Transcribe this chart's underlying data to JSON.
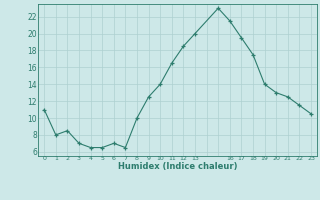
{
  "x": [
    0,
    1,
    2,
    3,
    4,
    5,
    6,
    7,
    8,
    9,
    10,
    11,
    12,
    13,
    15,
    16,
    17,
    18,
    19,
    20,
    21,
    22,
    23
  ],
  "y": [
    11.0,
    8.0,
    8.5,
    7.0,
    6.5,
    6.5,
    7.0,
    6.5,
    10.0,
    12.5,
    14.0,
    16.5,
    18.5,
    20.0,
    23.0,
    21.5,
    19.5,
    17.5,
    14.0,
    13.0,
    12.5,
    11.5,
    10.5
  ],
  "line_color": "#2e7d6e",
  "marker": "+",
  "bg_color": "#cde8e8",
  "grid_color": "#aed0d0",
  "xlabel": "Humidex (Indice chaleur)",
  "xlim": [
    -0.5,
    23.5
  ],
  "ylim": [
    5.5,
    23.5
  ],
  "yticks": [
    6,
    8,
    10,
    12,
    14,
    16,
    18,
    20,
    22
  ],
  "font_color": "#2e7d6e"
}
